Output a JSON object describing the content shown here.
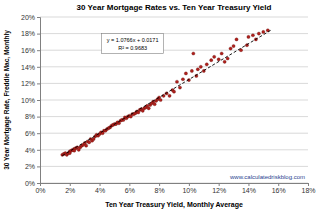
{
  "chart_data": {
    "type": "scatter",
    "title": "30 Year Mortgage Rates vs. Ten Year Treasury Yield",
    "x_label": "Ten Year Treasury Yield, Monthly Average",
    "y_label": "30 Year Mortgage Rate, Freddie Mac, Monthly",
    "annotations": [
      "y = 1.0766x + 0.0171",
      "R² = 0.9683"
    ],
    "source": "www.calculatedriskblog.com",
    "grid": true,
    "xlim": [
      0,
      18
    ],
    "ylim": [
      0,
      20
    ],
    "xticks": [
      {
        "value": 0,
        "label": "0%"
      },
      {
        "value": 2,
        "label": "2%"
      },
      {
        "value": 4,
        "label": "4%"
      },
      {
        "value": 6,
        "label": "6%"
      },
      {
        "value": 8,
        "label": "8%"
      },
      {
        "value": 10,
        "label": "10%"
      },
      {
        "value": 12,
        "label": "12%"
      },
      {
        "value": 14,
        "label": "14%"
      },
      {
        "value": 16,
        "label": "16%"
      },
      {
        "value": 18,
        "label": "18%"
      }
    ],
    "yticks": [
      {
        "value": 0,
        "label": "0%"
      },
      {
        "value": 2,
        "label": "2%"
      },
      {
        "value": 4,
        "label": "4%"
      },
      {
        "value": 6,
        "label": "6%"
      },
      {
        "value": 8,
        "label": "8%"
      },
      {
        "value": 10,
        "label": "10%"
      },
      {
        "value": 12,
        "label": "12%"
      },
      {
        "value": 14,
        "label": "14%"
      },
      {
        "value": 16,
        "label": "16%"
      },
      {
        "value": 18,
        "label": "18%"
      },
      {
        "value": 20,
        "label": "20%"
      }
    ],
    "series": [
      {
        "type": "scatter",
        "color": "#b0201c",
        "marker": "circle",
        "x": [
          1.5,
          1.6,
          1.7,
          1.8,
          1.9,
          2.0,
          2.0,
          2.1,
          2.2,
          2.3,
          2.3,
          2.4,
          2.5,
          2.6,
          2.7,
          2.8,
          2.9,
          3.0,
          3.1,
          3.2,
          3.3,
          3.4,
          3.5,
          3.6,
          3.7,
          3.8,
          3.9,
          4.0,
          4.1,
          4.2,
          4.3,
          4.4,
          4.5,
          4.6,
          4.7,
          4.8,
          4.9,
          5.0,
          5.1,
          5.2,
          5.3,
          5.4,
          5.5,
          5.6,
          5.7,
          5.8,
          5.9,
          6.0,
          6.1,
          6.2,
          6.3,
          6.4,
          6.5,
          6.6,
          6.7,
          6.8,
          6.9,
          7.0,
          7.1,
          7.2,
          7.3,
          7.4,
          7.5,
          7.6,
          7.7,
          7.8,
          7.9,
          8.0,
          8.1,
          8.3,
          8.5,
          8.7,
          8.9,
          9.0,
          9.2,
          9.4,
          9.6,
          9.8,
          10.0,
          10.2,
          10.3,
          10.5,
          10.6,
          10.8,
          11.0,
          11.2,
          11.5,
          11.7,
          12.0,
          12.2,
          12.4,
          12.6,
          12.8,
          13.0,
          13.2,
          13.5,
          13.9,
          14.0,
          14.3,
          14.5,
          14.7,
          15.0,
          15.3
        ],
        "values": [
          3.4,
          3.5,
          3.6,
          3.4,
          3.6,
          3.8,
          3.6,
          3.9,
          4.0,
          4.1,
          3.9,
          4.2,
          4.3,
          4.0,
          4.3,
          4.5,
          4.6,
          4.8,
          4.5,
          5.0,
          4.9,
          5.3,
          5.1,
          5.3,
          5.6,
          5.8,
          5.7,
          5.9,
          6.1,
          6.0,
          6.3,
          6.3,
          6.5,
          6.6,
          6.7,
          6.9,
          7.0,
          7.1,
          7.1,
          7.3,
          7.2,
          7.5,
          7.6,
          7.6,
          7.9,
          7.8,
          8.0,
          8.1,
          8.0,
          8.3,
          8.3,
          8.4,
          8.6,
          8.5,
          8.8,
          8.9,
          8.7,
          9.0,
          9.1,
          9.3,
          9.0,
          9.4,
          9.6,
          9.8,
          9.5,
          9.9,
          10.1,
          10.3,
          10.0,
          10.5,
          10.8,
          10.5,
          11.2,
          11.0,
          12.2,
          11.5,
          12.5,
          13.2,
          12.4,
          13.5,
          15.6,
          12.9,
          13.7,
          14.0,
          13.5,
          14.3,
          14.8,
          15.2,
          14.9,
          15.6,
          14.6,
          15.0,
          16.2,
          16.5,
          17.3,
          16.0,
          16.6,
          17.6,
          17.8,
          17.3,
          18.0,
          18.2,
          18.4
        ]
      },
      {
        "type": "line",
        "color": "#000000",
        "line_style": "dashed",
        "x": [
          1.5,
          15.5
        ],
        "values": [
          3.3,
          18.4
        ]
      }
    ]
  }
}
